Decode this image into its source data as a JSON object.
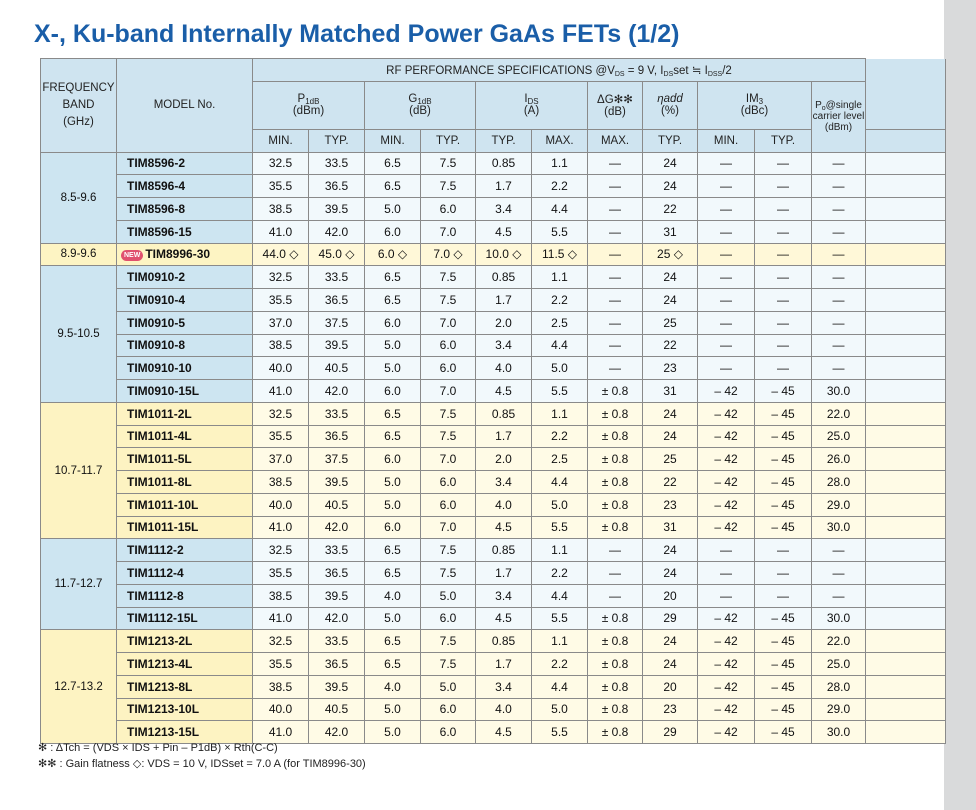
{
  "title": "X-, Ku-band Internally Matched Power GaAs FETs (1/2)",
  "header": {
    "band_lines": [
      "FREQUENCY",
      "BAND",
      "(GHz)"
    ],
    "model": "MODEL No.",
    "rf_spec_pre": "RF PERFORMANCE SPECIFICATIONS  @V",
    "rf_spec_ds": "DS",
    "rf_spec_mid": " = 9 V, I",
    "rf_spec_dsset": "DS",
    "rf_spec_set": "set ≒ I",
    "rf_spec_dss": "DSS",
    "rf_spec_tail": "/2",
    "p1db_main": "P",
    "p1db_sub": "1dB",
    "p1db_unit": "(dBm)",
    "g1db_main": "G",
    "g1db_sub": "1dB",
    "g1db_unit": "(dB)",
    "ids_main": "I",
    "ids_sub": "DS",
    "ids_unit": "(A)",
    "dg_main": "ΔG✻✻",
    "dg_unit": "(dB)",
    "eta_main": "ηadd",
    "eta_unit": "(%)",
    "im3_main": "IM",
    "im3_sub": "3",
    "im3_unit": "(dBc)",
    "po_line1": "P",
    "po_sub": "o",
    "po_line1b": "@single",
    "po_line2": "carrier level",
    "po_line3": "(dBm)",
    "min": "MIN.",
    "typ": "TYP.",
    "max": "MAX."
  },
  "groups": [
    {
      "band": "8.5-9.6",
      "style": "blue",
      "rows": [
        {
          "model": "TIM8596-2",
          "v": [
            "32.5",
            "33.5",
            "6.5",
            "7.5",
            "0.85",
            "1.1",
            "—",
            "24",
            "—",
            "—",
            "—"
          ]
        },
        {
          "model": "TIM8596-4",
          "v": [
            "35.5",
            "36.5",
            "6.5",
            "7.5",
            "1.7",
            "2.2",
            "—",
            "24",
            "—",
            "—",
            "—"
          ]
        },
        {
          "model": "TIM8596-8",
          "v": [
            "38.5",
            "39.5",
            "5.0",
            "6.0",
            "3.4",
            "4.4",
            "—",
            "22",
            "—",
            "—",
            "—"
          ]
        },
        {
          "model": "TIM8596-15",
          "v": [
            "41.0",
            "42.0",
            "6.0",
            "7.0",
            "4.5",
            "5.5",
            "—",
            "31",
            "—",
            "—",
            "—"
          ]
        }
      ]
    },
    {
      "band": "8.9-9.6",
      "style": "new",
      "badge": "NEW",
      "rows": [
        {
          "model": "TIM8996-30",
          "v": [
            "44.0 ◇",
            "45.0 ◇",
            "6.0 ◇",
            "7.0 ◇",
            "10.0 ◇",
            "11.5 ◇",
            "—",
            "25 ◇",
            "—",
            "—",
            "—"
          ]
        }
      ]
    },
    {
      "band": "9.5-10.5",
      "style": "blue",
      "rows": [
        {
          "model": "TIM0910-2",
          "v": [
            "32.5",
            "33.5",
            "6.5",
            "7.5",
            "0.85",
            "1.1",
            "—",
            "24",
            "—",
            "—",
            "—"
          ]
        },
        {
          "model": "TIM0910-4",
          "v": [
            "35.5",
            "36.5",
            "6.5",
            "7.5",
            "1.7",
            "2.2",
            "—",
            "24",
            "—",
            "—",
            "—"
          ]
        },
        {
          "model": "TIM0910-5",
          "v": [
            "37.0",
            "37.5",
            "6.0",
            "7.0",
            "2.0",
            "2.5",
            "—",
            "25",
            "—",
            "—",
            "—"
          ]
        },
        {
          "model": "TIM0910-8",
          "v": [
            "38.5",
            "39.5",
            "5.0",
            "6.0",
            "3.4",
            "4.4",
            "—",
            "22",
            "—",
            "—",
            "—"
          ]
        },
        {
          "model": "TIM0910-10",
          "v": [
            "40.0",
            "40.5",
            "5.0",
            "6.0",
            "4.0",
            "5.0",
            "—",
            "23",
            "—",
            "—",
            "—"
          ]
        },
        {
          "model": "TIM0910-15L",
          "v": [
            "41.0",
            "42.0",
            "6.0",
            "7.0",
            "4.5",
            "5.5",
            "± 0.8",
            "31",
            "– 42",
            "– 45",
            "30.0"
          ]
        }
      ]
    },
    {
      "band": "10.7-11.7",
      "style": "yellow",
      "rows": [
        {
          "model": "TIM1011-2L",
          "v": [
            "32.5",
            "33.5",
            "6.5",
            "7.5",
            "0.85",
            "1.1",
            "± 0.8",
            "24",
            "– 42",
            "– 45",
            "22.0"
          ]
        },
        {
          "model": "TIM1011-4L",
          "v": [
            "35.5",
            "36.5",
            "6.5",
            "7.5",
            "1.7",
            "2.2",
            "± 0.8",
            "24",
            "– 42",
            "– 45",
            "25.0"
          ]
        },
        {
          "model": "TIM1011-5L",
          "v": [
            "37.0",
            "37.5",
            "6.0",
            "7.0",
            "2.0",
            "2.5",
            "± 0.8",
            "25",
            "– 42",
            "– 45",
            "26.0"
          ]
        },
        {
          "model": "TIM1011-8L",
          "v": [
            "38.5",
            "39.5",
            "5.0",
            "6.0",
            "3.4",
            "4.4",
            "± 0.8",
            "22",
            "– 42",
            "– 45",
            "28.0"
          ]
        },
        {
          "model": "TIM1011-10L",
          "v": [
            "40.0",
            "40.5",
            "5.0",
            "6.0",
            "4.0",
            "5.0",
            "± 0.8",
            "23",
            "– 42",
            "– 45",
            "29.0"
          ]
        },
        {
          "model": "TIM1011-15L",
          "v": [
            "41.0",
            "42.0",
            "6.0",
            "7.0",
            "4.5",
            "5.5",
            "± 0.8",
            "31",
            "– 42",
            "– 45",
            "30.0"
          ]
        }
      ]
    },
    {
      "band": "11.7-12.7",
      "style": "blue",
      "rows": [
        {
          "model": "TIM1112-2",
          "v": [
            "32.5",
            "33.5",
            "6.5",
            "7.5",
            "0.85",
            "1.1",
            "—",
            "24",
            "—",
            "—",
            "—"
          ]
        },
        {
          "model": "TIM1112-4",
          "v": [
            "35.5",
            "36.5",
            "6.5",
            "7.5",
            "1.7",
            "2.2",
            "—",
            "24",
            "—",
            "—",
            "—"
          ]
        },
        {
          "model": "TIM1112-8",
          "v": [
            "38.5",
            "39.5",
            "4.0",
            "5.0",
            "3.4",
            "4.4",
            "—",
            "20",
            "—",
            "—",
            "—"
          ]
        },
        {
          "model": "TIM1112-15L",
          "v": [
            "41.0",
            "42.0",
            "5.0",
            "6.0",
            "4.5",
            "5.5",
            "± 0.8",
            "29",
            "– 42",
            "– 45",
            "30.0"
          ]
        }
      ]
    },
    {
      "band": "12.7-13.2",
      "style": "yellow",
      "rows": [
        {
          "model": "TIM1213-2L",
          "v": [
            "32.5",
            "33.5",
            "6.5",
            "7.5",
            "0.85",
            "1.1",
            "± 0.8",
            "24",
            "– 42",
            "– 45",
            "22.0"
          ]
        },
        {
          "model": "TIM1213-4L",
          "v": [
            "35.5",
            "36.5",
            "6.5",
            "7.5",
            "1.7",
            "2.2",
            "± 0.8",
            "24",
            "– 42",
            "– 45",
            "25.0"
          ]
        },
        {
          "model": "TIM1213-8L",
          "v": [
            "38.5",
            "39.5",
            "4.0",
            "5.0",
            "3.4",
            "4.4",
            "± 0.8",
            "20",
            "– 42",
            "– 45",
            "28.0"
          ]
        },
        {
          "model": "TIM1213-10L",
          "v": [
            "40.0",
            "40.5",
            "5.0",
            "6.0",
            "4.0",
            "5.0",
            "± 0.8",
            "23",
            "– 42",
            "– 45",
            "29.0"
          ]
        },
        {
          "model": "TIM1213-15L",
          "v": [
            "41.0",
            "42.0",
            "5.0",
            "6.0",
            "4.5",
            "5.5",
            "± 0.8",
            "29",
            "– 42",
            "– 45",
            "30.0"
          ]
        }
      ]
    }
  ],
  "notes": {
    "note1": "✻ : ΔTch = (VDS × IDS + Pin – P1dB) × Rth(C-C)",
    "note2": "✻✻ : Gain flatness   ◇: VDS = 10 V, IDSset = 7.0 A (for TIM8996-30)"
  }
}
